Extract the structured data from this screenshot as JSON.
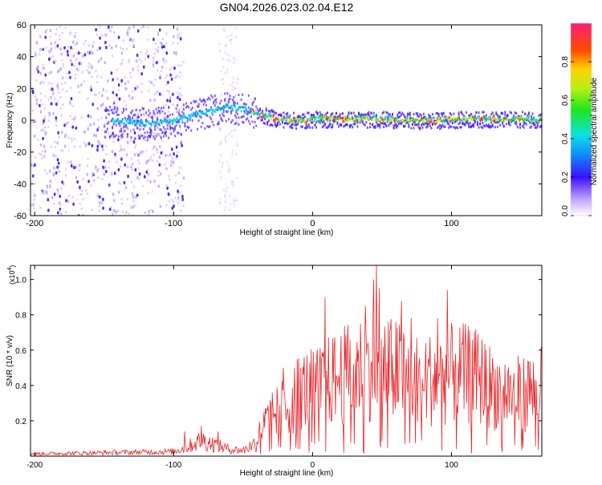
{
  "title": "GN04.2026.023.02.04.E12",
  "chart_data": [
    {
      "type": "heatmap",
      "title": "GN04.2026.023.02.04.E12",
      "xlabel": "Height of straight line (km)",
      "ylabel": "Frequency (Hz)",
      "xlim": [
        -203,
        165
      ],
      "ylim": [
        -60,
        60
      ],
      "xticks": [
        -200,
        -100,
        0,
        100
      ],
      "xtick_labels": [
        "-200",
        "-100",
        "0",
        "100"
      ],
      "yticks": [
        60,
        40,
        20,
        0,
        -20,
        -40,
        -60
      ],
      "ytick_labels": [
        "60",
        "40",
        "20",
        "0",
        "-20",
        "-40",
        "-60"
      ],
      "ridge": {
        "x": [
          -145,
          -120,
          -100,
          -80,
          -60,
          -45,
          -30,
          -10,
          0,
          20,
          50,
          80,
          110,
          140,
          165
        ],
        "y": [
          0,
          -2,
          0,
          5,
          9,
          6,
          2,
          0,
          1,
          1,
          1,
          0,
          1,
          1,
          1
        ]
      },
      "colorbar": {
        "label": "Normalized spectral amplitude",
        "range": [
          0,
          1
        ],
        "ticks": [
          0.0,
          0.2,
          0.4,
          0.6,
          0.8
        ],
        "tick_labels": [
          "0.0",
          "0.2",
          "0.4",
          "0.6",
          "0.8"
        ]
      }
    },
    {
      "type": "line",
      "xlabel": "Height of straight line (km)",
      "ylabel": "SNR (10 * v/v)",
      "multiplier_label": "(x10",
      "multiplier_exp": "4",
      "multiplier_close": ")",
      "xlim": [
        -203,
        165
      ],
      "ylim": [
        0,
        1.08
      ],
      "xticks": [
        -200,
        -100,
        0,
        100
      ],
      "xtick_labels": [
        "-200",
        "-100",
        "0",
        "100"
      ],
      "yticks": [
        0.2,
        0.4,
        0.6,
        0.8,
        1.0
      ],
      "ytick_labels": [
        "0.2",
        "0.4",
        "0.6",
        "0.8",
        "1.0"
      ],
      "series": [
        {
          "name": "SNR",
          "color": "#e8262b",
          "envelope_x": [
            -203,
            -150,
            -100,
            -90,
            -80,
            -75,
            -60,
            -50,
            -40,
            -35,
            -25,
            -15,
            -10,
            0,
            10,
            20,
            30,
            40,
            45,
            50,
            60,
            70,
            80,
            90,
            100,
            110,
            120,
            130,
            140,
            150,
            160,
            165
          ],
          "envelope_y": [
            0.02,
            0.03,
            0.04,
            0.08,
            0.14,
            0.12,
            0.06,
            0.05,
            0.12,
            0.22,
            0.32,
            0.38,
            0.46,
            0.48,
            0.52,
            0.56,
            0.6,
            0.64,
            0.66,
            0.62,
            0.6,
            0.55,
            0.54,
            0.55,
            0.58,
            0.58,
            0.55,
            0.48,
            0.45,
            0.44,
            0.46,
            0.48
          ],
          "spikes_x": [
            -92,
            -80,
            -68,
            -21,
            9,
            27,
            38,
            44,
            46,
            48,
            60,
            64,
            71,
            90,
            97,
            103,
            115,
            125,
            155,
            165
          ],
          "spikes_y": [
            0.14,
            0.17,
            0.14,
            0.5,
            0.9,
            0.66,
            0.85,
            1.0,
            1.08,
            0.95,
            0.76,
            0.88,
            0.78,
            0.78,
            0.94,
            0.58,
            0.66,
            0.6,
            0.54,
            0.62
          ]
        }
      ]
    }
  ]
}
